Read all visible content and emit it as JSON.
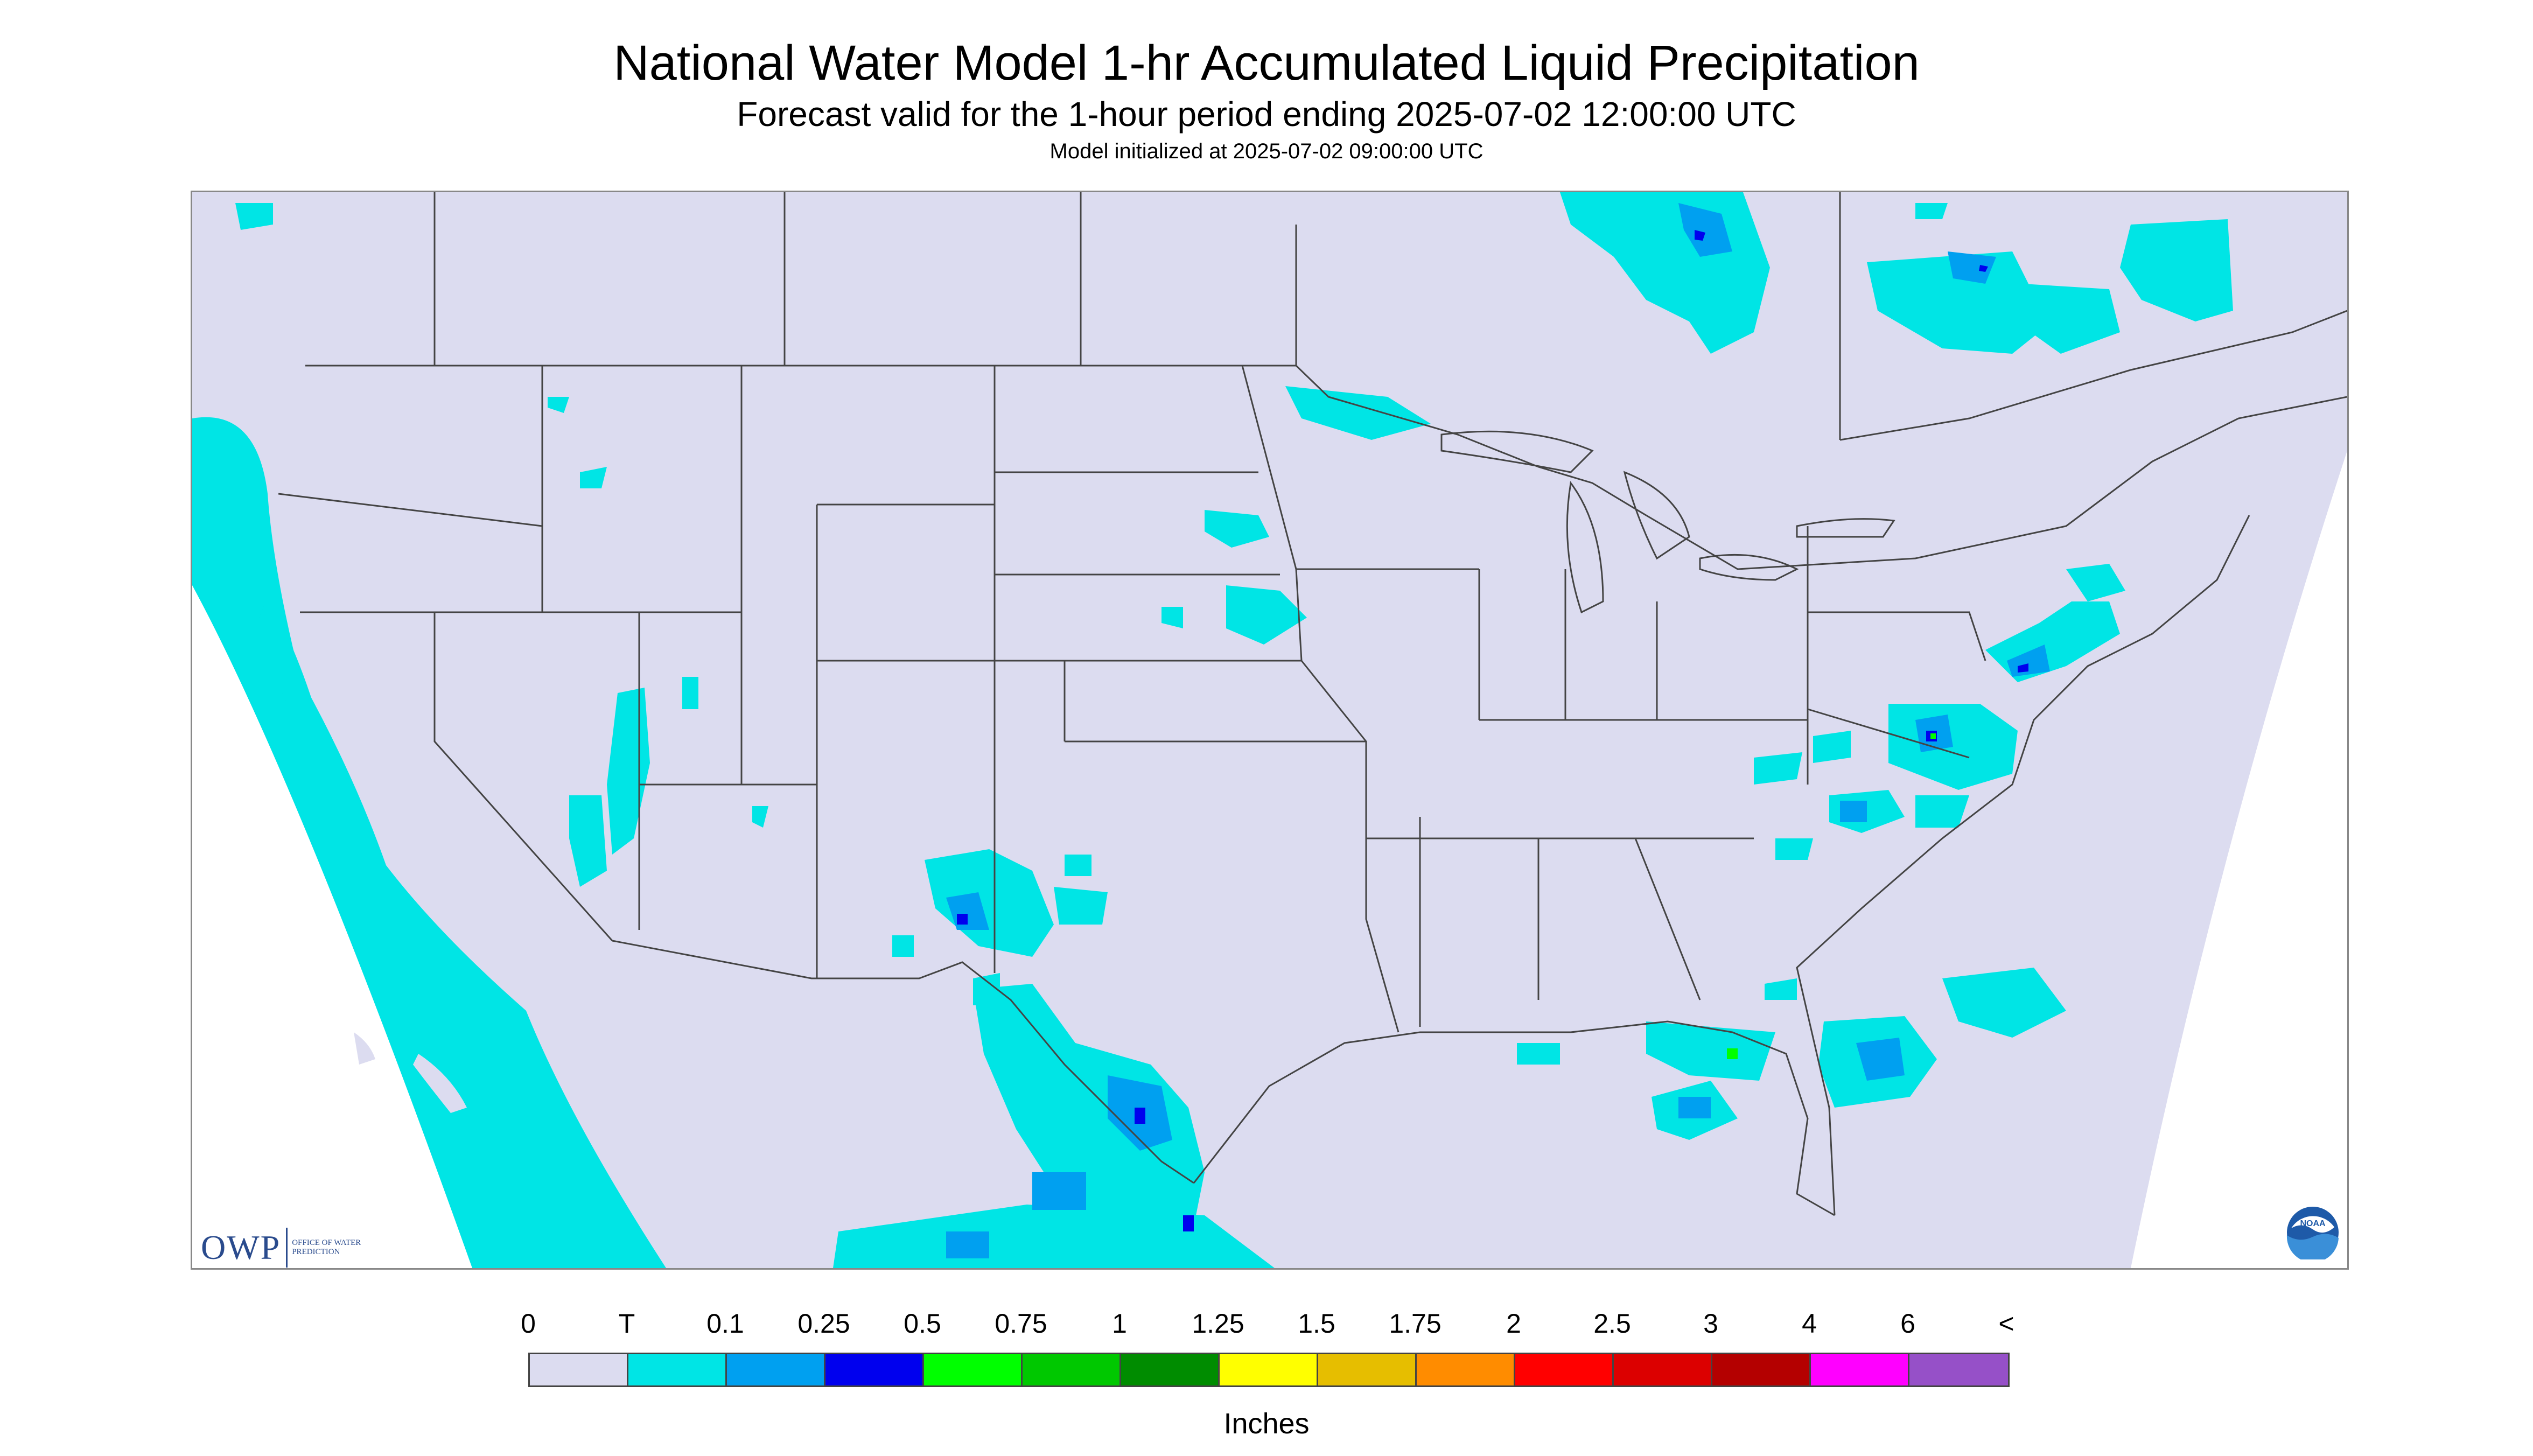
{
  "header": {
    "title": "National Water Model 1-hr Accumulated Liquid Precipitation",
    "subtitle": "Forecast valid for the 1-hour period ending 2025-07-02 12:00:00 UTC",
    "init_line": "Model initialized at 2025-07-02 09:00:00 UTC"
  },
  "logos": {
    "owp_text": "OWP",
    "owp_subtext": "Office of Water Prediction",
    "noaa_text": "NOAA"
  },
  "legend": {
    "units_label": "Inches",
    "labels": [
      "0",
      "T",
      "0.1",
      "0.25",
      "0.5",
      "0.75",
      "1",
      "1.25",
      "1.5",
      "1.75",
      "2",
      "2.5",
      "3",
      "4",
      "6",
      "<"
    ],
    "colors": [
      "#dcdcf0",
      "#00e5e5",
      "#00a0f0",
      "#0000ee",
      "#00ff00",
      "#00c800",
      "#008c00",
      "#ffff00",
      "#e6be00",
      "#ff8c00",
      "#ff0000",
      "#dc0000",
      "#b40000",
      "#ff00ff",
      "#9650c8"
    ]
  },
  "colors": {
    "no_data": "#ffffff",
    "land_background": "#dcdcf0",
    "trace": "#00e5e5",
    "light": "#00a0f0",
    "moderate": "#0000ee",
    "heavy": "#00ff00",
    "boundary": "#444444"
  }
}
